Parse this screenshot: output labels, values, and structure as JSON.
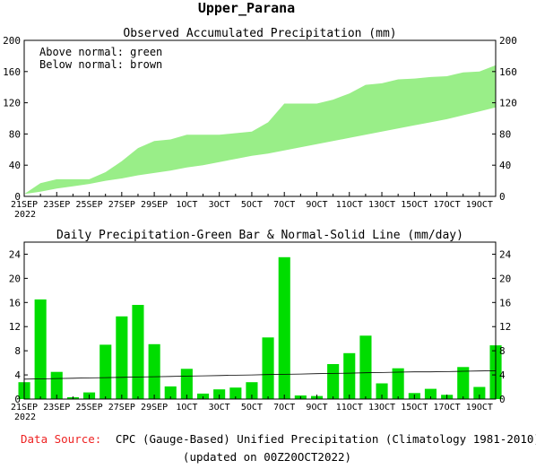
{
  "page_title": "Upper_Parana",
  "colors": {
    "green_fill": "#99ee88",
    "green_bar": "#00dd00",
    "axis": "#000000",
    "source_label": "#ee2222"
  },
  "footer": {
    "source_label": "Data Source:",
    "source_text": "CPC (Gauge-Based) Unified Precipitation (Climatology 1981-2010)",
    "updated": "(updated on 00Z20OCT2022)"
  },
  "chart_data": [
    {
      "type": "area",
      "title": "Observed Accumulated Precipitation (mm)",
      "annotations": [
        "Above normal: green",
        "Below normal: brown"
      ],
      "xlim": [
        "21SEP2022",
        "20OCT2022"
      ],
      "ylim": [
        0,
        200
      ],
      "yticks": [
        0,
        40,
        80,
        120,
        160,
        200
      ],
      "x_tick_labels": [
        "21SEP",
        "23SEP",
        "25SEP",
        "27SEP",
        "29SEP",
        "1OCT",
        "3OCT",
        "5OCT",
        "7OCT",
        "9OCT",
        "11OCT",
        "13OCT",
        "15OCT",
        "17OCT",
        "19OCT"
      ],
      "x_year_label": "2022",
      "series": [
        {
          "values": [
            3,
            17,
            22,
            22,
            22,
            31,
            45,
            62,
            71,
            73,
            79,
            79,
            79,
            81,
            83,
            95,
            119,
            119,
            119,
            124,
            132,
            143,
            145,
            150,
            151,
            153,
            154,
            159,
            160,
            168
          ]
        },
        {
          "values": [
            3,
            6,
            10,
            13,
            16,
            20,
            23,
            27,
            30,
            33,
            37,
            40,
            44,
            48,
            52,
            55,
            59,
            63,
            67,
            71,
            75,
            79,
            83,
            87,
            91,
            95,
            99,
            104,
            109,
            114
          ]
        }
      ]
    },
    {
      "type": "bar",
      "title": "Daily Precipitation-Green Bar & Normal-Solid Line (mm/day)",
      "xlim": [
        "21SEP2022",
        "20OCT2022"
      ],
      "ylim": [
        0,
        26
      ],
      "yticks": [
        0,
        4,
        8,
        12,
        16,
        20,
        24
      ],
      "x_tick_labels": [
        "21SEP",
        "23SEP",
        "25SEP",
        "27SEP",
        "29SEP",
        "1OCT",
        "3OCT",
        "5OCT",
        "7OCT",
        "9OCT",
        "11OCT",
        "13OCT",
        "15OCT",
        "17OCT",
        "19OCT"
      ],
      "x_year_label": "2022",
      "series": [
        {
          "values": [
            2.8,
            16.5,
            4.5,
            0.3,
            1.1,
            9.0,
            13.7,
            15.6,
            9.1,
            2.1,
            5.0,
            0.9,
            1.6,
            1.9,
            2.8,
            10.2,
            23.5,
            0.6,
            0.5,
            5.8,
            7.6,
            10.5,
            2.6,
            5.1,
            1.0,
            1.7,
            0.7,
            5.3,
            2.0,
            8.9
          ]
        },
        {
          "values": [
            3.3,
            3.35,
            3.4,
            3.45,
            3.5,
            3.55,
            3.6,
            3.65,
            3.7,
            3.75,
            3.8,
            3.85,
            3.9,
            3.95,
            4.0,
            4.05,
            4.1,
            4.15,
            4.2,
            4.25,
            4.3,
            4.35,
            4.4,
            4.45,
            4.5,
            4.5,
            4.55,
            4.6,
            4.65,
            4.7
          ]
        }
      ]
    }
  ]
}
